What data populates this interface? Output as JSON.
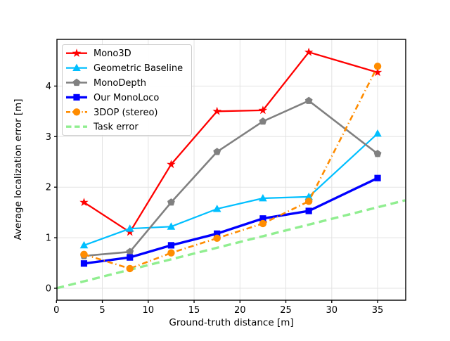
{
  "chart_data": {
    "type": "line",
    "title": "",
    "xlabel": "Ground-truth distance [m]",
    "ylabel": "Average localization error [m]",
    "xlim": [
      0,
      38
    ],
    "ylim": [
      -0.24,
      4.92
    ],
    "x_ticks": [
      0,
      5,
      10,
      15,
      20,
      25,
      30,
      35
    ],
    "y_ticks": [
      0,
      1,
      2,
      3,
      4
    ],
    "grid": true,
    "grid_color": "#e3e3e3",
    "spine_color": "#000000",
    "background": "#ffffff",
    "legend_position": "upper-left",
    "x": [
      3,
      8,
      12.5,
      17.5,
      22.5,
      27.5,
      35
    ],
    "series": [
      {
        "name": "Mono3D",
        "color": "#ff0000",
        "marker": "star",
        "line_style": "solid",
        "line_width": 2.3,
        "values": [
          1.7,
          1.11,
          2.45,
          3.5,
          3.52,
          4.67,
          4.27
        ]
      },
      {
        "name": "Geometric Baseline",
        "color": "#00bfff",
        "marker": "triangle",
        "line_style": "solid",
        "line_width": 2.2,
        "values": [
          0.85,
          1.18,
          1.22,
          1.57,
          1.78,
          1.81,
          3.06
        ]
      },
      {
        "name": "MonoDepth",
        "color": "#808080",
        "marker": "pentagon",
        "line_style": "solid",
        "line_width": 2.6,
        "values": [
          0.64,
          0.72,
          1.7,
          2.7,
          3.3,
          3.71,
          2.66
        ]
      },
      {
        "name": "Our MonoLoco",
        "color": "#0000ff",
        "marker": "square",
        "line_style": "solid",
        "line_width": 3.4,
        "values": [
          0.49,
          0.61,
          0.85,
          1.08,
          1.38,
          1.53,
          2.18
        ]
      },
      {
        "name": "3DOP (stereo)",
        "color": "#ff8c00",
        "marker": "circle",
        "line_style": "dashdot",
        "line_width": 2.6,
        "values": [
          0.67,
          0.39,
          0.7,
          0.99,
          1.28,
          1.72,
          4.39
        ]
      },
      {
        "name": "Task error",
        "color": "#90ee90",
        "marker": "none",
        "line_style": "dashed",
        "line_width": 3.4,
        "x": [
          0,
          38
        ],
        "values": [
          0,
          1.74
        ]
      }
    ]
  }
}
